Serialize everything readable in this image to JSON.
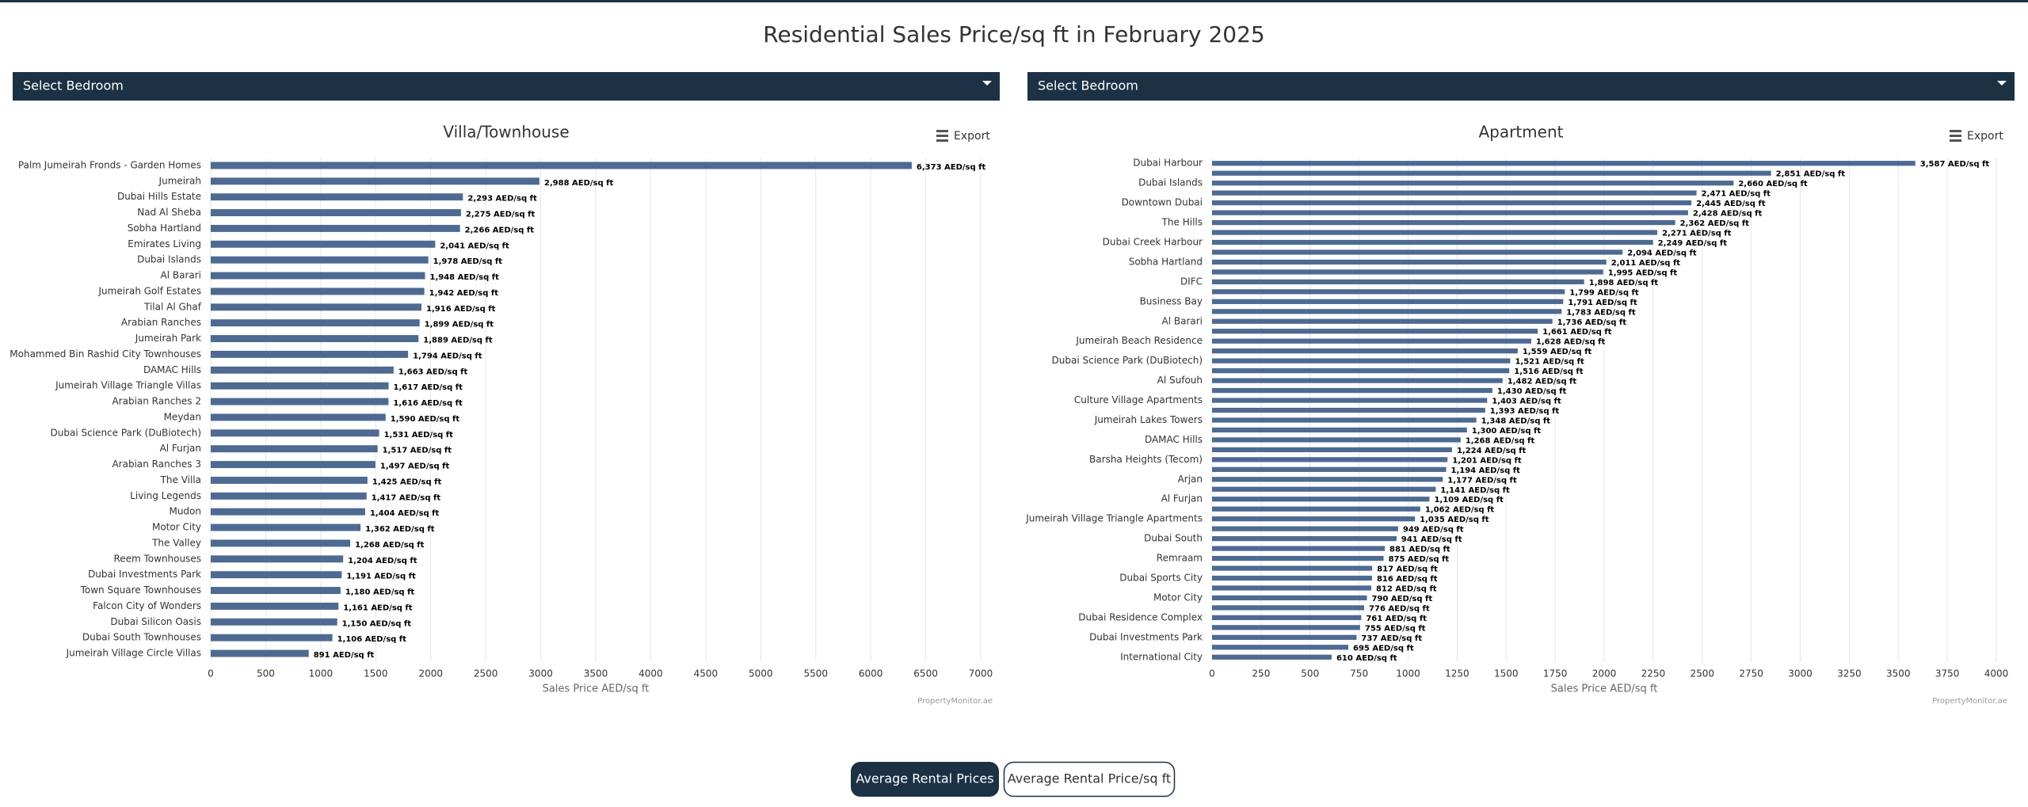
{
  "page_title": "Residential Sales Price/sq ft in February 2025",
  "dropdowns": [
    "Select Bedroom",
    "Select Bedroom"
  ],
  "buttons": [
    "Average Rental Prices",
    "Average Rental Price/sq ft"
  ],
  "chart_data": [
    {
      "type": "bar",
      "orientation": "horizontal",
      "title": "Villa/Townhouse",
      "export_label": "Export",
      "xlabel": "Sales Price AED/sq ft",
      "credit": "PropertyMonitor.ae",
      "color": "#4e6a92",
      "grid": true,
      "categories": [
        "Palm Jumeirah Fronds - Garden Homes",
        "Jumeirah",
        "Dubai Hills Estate",
        "Nad Al Sheba",
        "Sobha Hartland",
        "Emirates Living",
        "Dubai Islands",
        "Al Barari",
        "Jumeirah Golf Estates",
        "Tilal Al Ghaf",
        "Arabian Ranches",
        "Jumeirah Park",
        "Mohammed Bin Rashid City Townhouses",
        "DAMAC Hills",
        "Jumeirah Village Triangle Villas",
        "Arabian Ranches 2",
        "Meydan",
        "Dubai Science Park (DuBiotech)",
        "Al Furjan",
        "Arabian Ranches 3",
        "The Villa",
        "Living Legends",
        "Mudon",
        "Motor City",
        "The Valley",
        "Reem Townhouses",
        "Dubai Investments Park",
        "Town Square Townhouses",
        "Falcon City of Wonders",
        "Dubai Silicon Oasis",
        "Dubai South Townhouses",
        "Jumeirah Village Circle Villas"
      ],
      "values": [
        6373,
        2988,
        2293,
        2275,
        2266,
        2041,
        1978,
        1948,
        1942,
        1916,
        1899,
        1889,
        1794,
        1663,
        1617,
        1616,
        1590,
        1531,
        1517,
        1497,
        1425,
        1417,
        1404,
        1362,
        1268,
        1204,
        1191,
        1180,
        1161,
        1150,
        1106,
        891
      ],
      "value_labels": [
        "6,373 AED/sq ft",
        "2,988 AED/sq ft",
        "2,293 AED/sq ft",
        "2,275 AED/sq ft",
        "2,266 AED/sq ft",
        "2,041 AED/sq ft",
        "1,978 AED/sq ft",
        "1,948 AED/sq ft",
        "1,942 AED/sq ft",
        "1,916 AED/sq ft",
        "1,899 AED/sq ft",
        "1,889 AED/sq ft",
        "1,794 AED/sq ft",
        "1,663 AED/sq ft",
        "1,617 AED/sq ft",
        "1,616 AED/sq ft",
        "1,590 AED/sq ft",
        "1,531 AED/sq ft",
        "1,517 AED/sq ft",
        "1,497 AED/sq ft",
        "1,425 AED/sq ft",
        "1,417 AED/sq ft",
        "1,404 AED/sq ft",
        "1,362 AED/sq ft",
        "1,268 AED/sq ft",
        "1,204 AED/sq ft",
        "1,191 AED/sq ft",
        "1,180 AED/sq ft",
        "1,161 AED/sq ft",
        "1,150 AED/sq ft",
        "1,106 AED/sq ft",
        "891 AED/sq ft"
      ],
      "xlim": [
        0,
        7000
      ],
      "xticks": [
        0,
        500,
        1000,
        1500,
        2000,
        2500,
        3000,
        3500,
        4000,
        4500,
        5000,
        5500,
        6000,
        6500,
        7000
      ]
    },
    {
      "type": "bar",
      "orientation": "horizontal",
      "title": "Apartment",
      "export_label": "Export",
      "xlabel": "Sales Price AED/sq ft",
      "credit": "PropertyMonitor.ae",
      "color": "#4e6a92",
      "grid": true,
      "categories": [
        "Dubai Harbour",
        null,
        "Dubai Islands",
        null,
        "Downtown Dubai",
        null,
        "The Hills",
        null,
        "Dubai Creek Harbour",
        null,
        "Sobha Hartland",
        null,
        "DIFC",
        null,
        "Business Bay",
        null,
        "Al Barari",
        null,
        "Jumeirah Beach Residence",
        null,
        "Dubai Science Park (DuBiotech)",
        null,
        "Al Sufouh",
        null,
        "Culture Village Apartments",
        null,
        "Jumeirah Lakes Towers",
        null,
        "DAMAC Hills",
        null,
        "Barsha Heights (Tecom)",
        null,
        "Arjan",
        null,
        "Al Furjan",
        null,
        "Jumeirah Village Triangle Apartments",
        null,
        "Dubai South",
        null,
        "Remraam",
        null,
        "Dubai Sports City",
        null,
        "Motor City",
        null,
        "Dubai Residence Complex",
        null,
        "Dubai Investments Park",
        null,
        "International City"
      ],
      "values": [
        3587,
        2851,
        2660,
        2471,
        2445,
        2428,
        2362,
        2271,
        2249,
        2094,
        2011,
        1995,
        1898,
        1799,
        1791,
        1783,
        1736,
        1661,
        1628,
        1559,
        1521,
        1516,
        1482,
        1430,
        1403,
        1393,
        1348,
        1300,
        1268,
        1224,
        1201,
        1194,
        1177,
        1141,
        1109,
        1062,
        1035,
        949,
        941,
        881,
        875,
        817,
        816,
        812,
        790,
        776,
        761,
        755,
        737,
        695,
        610
      ],
      "value_labels": [
        "3,587 AED/sq ft",
        "2,851 AED/sq ft",
        "2,660 AED/sq ft",
        "2,471 AED/sq ft",
        "2,445 AED/sq ft",
        "2,428 AED/sq ft",
        "2,362 AED/sq ft",
        "2,271 AED/sq ft",
        "2,249 AED/sq ft",
        "2,094 AED/sq ft",
        "2,011 AED/sq ft",
        "1,995 AED/sq ft",
        "1,898 AED/sq ft",
        "1,799 AED/sq ft",
        "1,791 AED/sq ft",
        "1,783 AED/sq ft",
        "1,736 AED/sq ft",
        "1,661 AED/sq ft",
        "1,628 AED/sq ft",
        "1,559 AED/sq ft",
        "1,521 AED/sq ft",
        "1,516 AED/sq ft",
        "1,482 AED/sq ft",
        "1,430 AED/sq ft",
        "1,403 AED/sq ft",
        "1,393 AED/sq ft",
        "1,348 AED/sq ft",
        "1,300 AED/sq ft",
        "1,268 AED/sq ft",
        "1,224 AED/sq ft",
        "1,201 AED/sq ft",
        "1,194 AED/sq ft",
        "1,177 AED/sq ft",
        "1,141 AED/sq ft",
        "1,109 AED/sq ft",
        "1,062 AED/sq ft",
        "1,035 AED/sq ft",
        "949 AED/sq ft",
        "941 AED/sq ft",
        "881 AED/sq ft",
        "875 AED/sq ft",
        "817 AED/sq ft",
        "816 AED/sq ft",
        "812 AED/sq ft",
        "790 AED/sq ft",
        "776 AED/sq ft",
        "761 AED/sq ft",
        "755 AED/sq ft",
        "737 AED/sq ft",
        "695 AED/sq ft",
        "610 AED/sq ft"
      ],
      "xlim": [
        0,
        4000
      ],
      "xticks": [
        0,
        250,
        500,
        750,
        1000,
        1250,
        1500,
        1750,
        2000,
        2250,
        2500,
        2750,
        3000,
        3250,
        3500,
        3750,
        4000
      ]
    }
  ]
}
